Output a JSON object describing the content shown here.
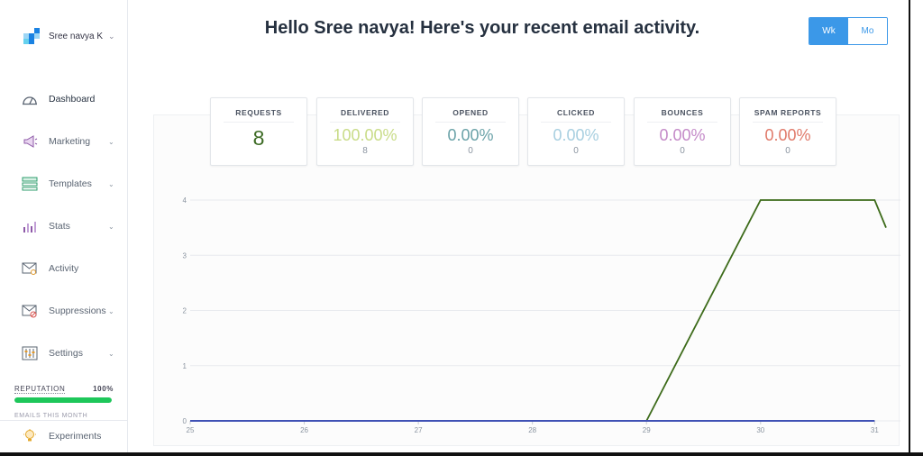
{
  "account": {
    "name": "Sree navya K",
    "chevron": "chevron-down-icon"
  },
  "nav": [
    {
      "label": "Dashboard",
      "icon": "gauge-icon",
      "has_submenu": false,
      "active": true
    },
    {
      "label": "Marketing",
      "icon": "megaphone-icon",
      "has_submenu": true,
      "active": false
    },
    {
      "label": "Templates",
      "icon": "template-icon",
      "has_submenu": true,
      "active": false
    },
    {
      "label": "Stats",
      "icon": "stats-icon",
      "has_submenu": true,
      "active": false
    },
    {
      "label": "Activity",
      "icon": "activity-icon",
      "has_submenu": false,
      "active": false
    },
    {
      "label": "Suppressions",
      "icon": "suppressions-icon",
      "has_submenu": true,
      "active": false
    },
    {
      "label": "Settings",
      "icon": "settings-icon",
      "has_submenu": true,
      "active": false
    }
  ],
  "reputation": {
    "label": "REPUTATION",
    "value": "100%",
    "fraction": 1.0,
    "color": "#1ec75a"
  },
  "emails_this_month": {
    "label": "EMAILS THIS MONTH"
  },
  "experiments": {
    "label": "Experiments",
    "icon": "lightbulb-icon"
  },
  "header": {
    "greeting": "Hello Sree navya! Here's your recent email activity."
  },
  "period_toggle": {
    "options": [
      "Wk",
      "Mo"
    ],
    "selected": "Wk"
  },
  "stats": [
    {
      "label": "REQUESTS",
      "value": "8",
      "count": "",
      "color": "#3d6b25"
    },
    {
      "label": "DELIVERED",
      "value": "100.00%",
      "count": "8",
      "color": "#c9dc88"
    },
    {
      "label": "OPENED",
      "value": "0.00%",
      "count": "0",
      "color": "#6aa2a8"
    },
    {
      "label": "CLICKED",
      "value": "0.00%",
      "count": "0",
      "color": "#a8cfe0"
    },
    {
      "label": "BOUNCES",
      "value": "0.00%",
      "count": "0",
      "color": "#c48ac8"
    },
    {
      "label": "SPAM REPORTS",
      "value": "0.00%",
      "count": "0",
      "color": "#e07a6a"
    }
  ],
  "chart_data": {
    "type": "line",
    "x": [
      25,
      26,
      27,
      28,
      29,
      30,
      31
    ],
    "xlim": [
      25,
      31.1
    ],
    "ylim": [
      0,
      4
    ],
    "yticks": [
      0,
      1,
      2,
      3,
      4
    ],
    "grid": true,
    "series": [
      {
        "values": [
          0,
          0,
          0,
          0,
          0,
          4,
          4
        ],
        "extra_point": [
          31.1,
          3.5
        ],
        "color": "#3d6b1a"
      },
      {
        "values": [
          0,
          0,
          0,
          0,
          0,
          0,
          0
        ],
        "color": "#3f51b5"
      }
    ]
  }
}
